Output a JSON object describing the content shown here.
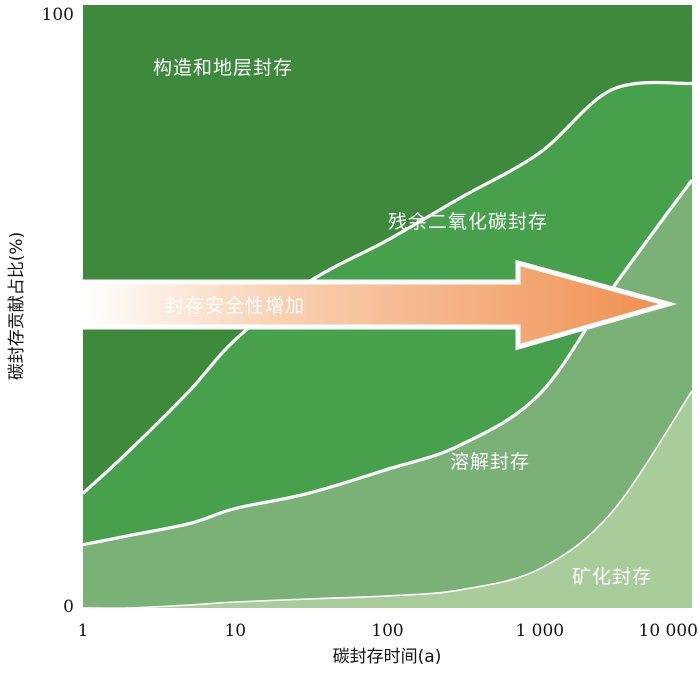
{
  "chart_data": {
    "type": "area",
    "stacked": true,
    "x_scale": "log",
    "xlabel": "碳封存时间(a)",
    "ylabel": "碳封存贡献占比(%)",
    "xlim": [
      1,
      10000
    ],
    "ylim": [
      0,
      100
    ],
    "x_ticks": [
      1,
      10,
      100,
      1000,
      10000
    ],
    "x_tick_labels": [
      "1",
      "10",
      "100",
      "1 000",
      "10 000"
    ],
    "y_tick_labels": [
      "0",
      "100"
    ],
    "x": [
      1,
      2,
      5,
      10,
      30,
      100,
      300,
      1000,
      3000,
      10000
    ],
    "series": [
      {
        "name": "矿化封存",
        "color": "#a9cc9b",
        "values": [
          0,
          0,
          0.5,
          1,
          1.5,
          2,
          3,
          6.5,
          16,
          36
        ]
      },
      {
        "name": "溶解封存",
        "color": "#7ab176",
        "values": [
          10.5,
          12,
          13.5,
          15.5,
          17.5,
          21,
          24,
          29,
          37,
          35
        ]
      },
      {
        "name": "残余二氧化碳封存",
        "color": "#46a04c",
        "values": [
          8.5,
          14,
          22,
          28,
          35,
          38,
          41,
          40,
          33,
          16
        ]
      },
      {
        "name": "构造和地层封存",
        "color": "#3e8a3d",
        "values": [
          81,
          74,
          64,
          55.5,
          46,
          39,
          32,
          24.5,
          14,
          13
        ]
      }
    ],
    "annotations": [
      {
        "text": "封存安全性增加",
        "type": "arrow",
        "direction": "right",
        "color": "#f09a5e"
      }
    ],
    "grid": false,
    "legend": "none"
  }
}
